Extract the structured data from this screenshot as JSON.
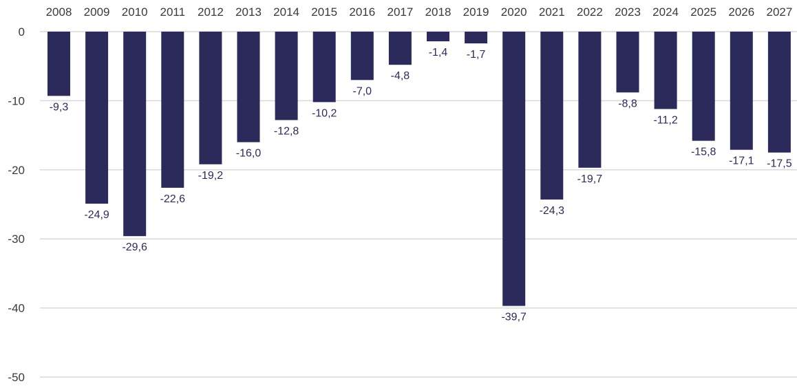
{
  "chart_data": {
    "type": "bar",
    "categories": [
      "2008",
      "2009",
      "2010",
      "2011",
      "2012",
      "2013",
      "2014",
      "2015",
      "2016",
      "2017",
      "2018",
      "2019",
      "2020",
      "2021",
      "2022",
      "2023",
      "2024",
      "2025",
      "2026",
      "2027"
    ],
    "values": [
      -9.3,
      -24.9,
      -29.6,
      -22.6,
      -19.2,
      -16.0,
      -12.8,
      -10.2,
      -7.0,
      -4.8,
      -1.4,
      -1.7,
      -39.7,
      -24.3,
      -19.7,
      -8.8,
      -11.2,
      -15.8,
      -17.1,
      -17.5
    ],
    "value_labels": [
      "-9,3",
      "-24,9",
      "-29,6",
      "-22,6",
      "-19,2",
      "-16,0",
      "-12,8",
      "-10,2",
      "-7,0",
      "-4,8",
      "-1,4",
      "-1,7",
      "-39,7",
      "-24,3",
      "-19,7",
      "-8,8",
      "-11,2",
      "-15,8",
      "-17,1",
      "-17,5"
    ],
    "yticks": [
      0,
      -10,
      -20,
      -30,
      -40,
      -50
    ],
    "ylim": [
      -50,
      0
    ],
    "x_axis_position": "top",
    "grid": true,
    "title": "",
    "xlabel": "",
    "ylabel": "",
    "bar_color": "#2b2a5a",
    "grid_color": "#d9d9d9"
  }
}
